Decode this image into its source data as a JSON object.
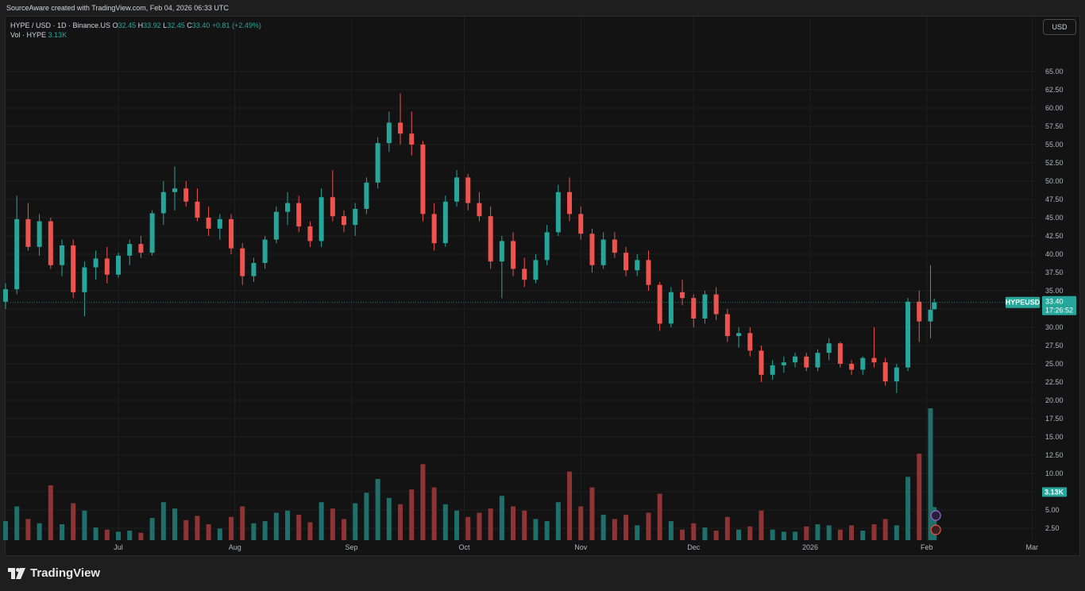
{
  "header": {
    "attribution": "SourceAware created with TradingView.com, Feb 04, 2026 06:33 UTC"
  },
  "legend": {
    "symbol": "HYPE / USD · 1D · Binance.US",
    "open_label": "O",
    "open": "32.45",
    "high_label": "H",
    "high": "33.92",
    "low_label": "L",
    "low": "32.45",
    "close_label": "C",
    "close": "33.40",
    "change": "+0.81 (+2.49%)",
    "volume_label": "Vol · HYPE",
    "volume": "3.13K"
  },
  "currency_button": "USD",
  "price_tag": {
    "symbol": "HYPEUSD",
    "price": "33.40",
    "countdown": "17:26:52"
  },
  "volume_tag": "3.13K",
  "brand": {
    "name": "TradingView"
  },
  "colors": {
    "up": "#26a69a",
    "down": "#ef5350",
    "up_volume": "#1f6f6a",
    "down_volume": "#8f3434",
    "background": "#131313",
    "grid": "#1f1f1f"
  },
  "chart_data": {
    "type": "candlestick",
    "symbol": "HYPEUSD",
    "interval": "1D",
    "y_axis": {
      "min": 2.5,
      "max": 67.5,
      "ticks": [
        2.5,
        5,
        7.5,
        10,
        12.5,
        15,
        17.5,
        20,
        22.5,
        25,
        27.5,
        30,
        32.5,
        35,
        37.5,
        40,
        42.5,
        45,
        47.5,
        50,
        52.5,
        55,
        57.5,
        60,
        62.5,
        65
      ]
    },
    "x_axis": {
      "labels": [
        {
          "text": "Jul",
          "date": "2025-07-01"
        },
        {
          "text": "Aug",
          "date": "2025-08-01"
        },
        {
          "text": "Sep",
          "date": "2025-09-01"
        },
        {
          "text": "Oct",
          "date": "2025-10-01"
        },
        {
          "text": "Nov",
          "date": "2025-11-01"
        },
        {
          "text": "Dec",
          "date": "2025-12-01"
        },
        {
          "text": "2026",
          "date": "2026-01-01"
        },
        {
          "text": "Feb",
          "date": "2026-02-01"
        },
        {
          "text": "Mar",
          "date": "2026-03-01"
        }
      ],
      "start": "2025-06-01",
      "end": "2026-03-02"
    },
    "last_price": 33.4,
    "volume_unit": "K",
    "candles": [
      [
        "2025-06-01",
        33.5,
        36.0,
        32.5,
        35.2,
        1.8
      ],
      [
        "2025-06-04",
        35.2,
        48.0,
        34.5,
        44.8,
        3.2
      ],
      [
        "2025-06-07",
        44.8,
        47.0,
        40.5,
        41.0,
        2.0
      ],
      [
        "2025-06-10",
        41.0,
        45.5,
        39.8,
        44.5,
        1.6
      ],
      [
        "2025-06-13",
        44.5,
        45.0,
        38.0,
        38.5,
        5.2
      ],
      [
        "2025-06-16",
        38.5,
        42.0,
        37.0,
        41.2,
        1.5
      ],
      [
        "2025-06-19",
        41.2,
        42.0,
        34.0,
        34.8,
        3.5
      ],
      [
        "2025-06-22",
        34.8,
        39.0,
        31.5,
        38.2,
        2.8
      ],
      [
        "2025-06-25",
        38.2,
        40.5,
        36.5,
        39.4,
        1.2
      ],
      [
        "2025-06-28",
        39.4,
        41.0,
        36.0,
        37.2,
        1.0
      ],
      [
        "2025-07-01",
        37.2,
        40.2,
        36.8,
        39.8,
        0.8
      ],
      [
        "2025-07-04",
        39.8,
        42.0,
        38.5,
        41.4,
        0.9
      ],
      [
        "2025-07-07",
        41.4,
        42.5,
        39.5,
        40.2,
        0.7
      ],
      [
        "2025-07-10",
        40.2,
        46.0,
        39.8,
        45.6,
        2.1
      ],
      [
        "2025-07-13",
        45.6,
        50.0,
        44.0,
        48.5,
        3.6
      ],
      [
        "2025-07-16",
        48.5,
        52.0,
        46.0,
        49.0,
        3.0
      ],
      [
        "2025-07-19",
        49.0,
        50.0,
        46.5,
        47.2,
        1.9
      ],
      [
        "2025-07-22",
        47.2,
        49.0,
        44.5,
        45.0,
        2.3
      ],
      [
        "2025-07-25",
        45.0,
        46.5,
        42.5,
        43.5,
        1.5
      ],
      [
        "2025-07-28",
        43.5,
        45.5,
        42.0,
        44.8,
        1.1
      ],
      [
        "2025-07-31",
        44.8,
        45.5,
        40.0,
        40.8,
        2.2
      ],
      [
        "2025-08-03",
        40.8,
        41.5,
        35.8,
        37.0,
        3.2
      ],
      [
        "2025-08-06",
        37.0,
        39.5,
        36.2,
        38.8,
        1.6
      ],
      [
        "2025-08-09",
        38.8,
        42.5,
        38.0,
        42.0,
        1.8
      ],
      [
        "2025-08-12",
        42.0,
        46.5,
        41.5,
        45.8,
        2.6
      ],
      [
        "2025-08-15",
        45.8,
        48.5,
        44.0,
        47.0,
        2.8
      ],
      [
        "2025-08-18",
        47.0,
        48.0,
        43.0,
        43.8,
        2.4
      ],
      [
        "2025-08-21",
        43.8,
        44.5,
        41.0,
        41.8,
        1.7
      ],
      [
        "2025-08-24",
        41.8,
        49.0,
        41.0,
        47.8,
        3.6
      ],
      [
        "2025-08-27",
        47.8,
        51.5,
        44.5,
        45.2,
        3.0
      ],
      [
        "2025-08-30",
        45.2,
        46.0,
        43.0,
        44.0,
        2.0
      ],
      [
        "2025-09-02",
        44.0,
        47.0,
        42.5,
        46.2,
        3.5
      ],
      [
        "2025-09-05",
        46.2,
        50.5,
        45.5,
        49.8,
        4.5
      ],
      [
        "2025-09-08",
        49.8,
        56.0,
        49.0,
        55.2,
        5.8
      ],
      [
        "2025-09-11",
        55.2,
        59.5,
        54.0,
        58.0,
        4.0
      ],
      [
        "2025-09-14",
        58.0,
        62.0,
        55.0,
        56.5,
        3.4
      ],
      [
        "2025-09-17",
        56.5,
        59.5,
        53.5,
        55.0,
        4.8
      ],
      [
        "2025-09-20",
        55.0,
        55.5,
        44.5,
        45.5,
        7.2
      ],
      [
        "2025-09-23",
        45.5,
        47.0,
        40.5,
        41.5,
        5.0
      ],
      [
        "2025-09-26",
        41.5,
        48.0,
        41.0,
        47.2,
        3.4
      ],
      [
        "2025-09-29",
        47.2,
        51.5,
        46.5,
        50.5,
        2.8
      ],
      [
        "2025-10-02",
        50.5,
        51.0,
        46.0,
        47.0,
        2.2
      ],
      [
        "2025-10-05",
        47.0,
        48.5,
        44.5,
        45.2,
        2.6
      ],
      [
        "2025-10-08",
        45.2,
        46.5,
        38.0,
        39.0,
        3.0
      ],
      [
        "2025-10-11",
        39.0,
        42.5,
        34.0,
        41.8,
        4.2
      ],
      [
        "2025-10-14",
        41.8,
        43.0,
        37.0,
        38.0,
        3.2
      ],
      [
        "2025-10-17",
        38.0,
        39.5,
        35.5,
        36.5,
        2.8
      ],
      [
        "2025-10-20",
        36.5,
        40.0,
        36.0,
        39.2,
        2.0
      ],
      [
        "2025-10-23",
        39.2,
        44.0,
        38.5,
        43.0,
        1.8
      ],
      [
        "2025-10-26",
        43.0,
        49.5,
        42.5,
        48.5,
        3.6
      ],
      [
        "2025-10-29",
        48.5,
        50.5,
        44.5,
        45.5,
        6.5
      ],
      [
        "2025-11-01",
        45.5,
        46.5,
        42.0,
        42.8,
        3.2
      ],
      [
        "2025-11-04",
        42.8,
        43.5,
        37.5,
        38.5,
        5.0
      ],
      [
        "2025-11-07",
        38.5,
        43.0,
        38.0,
        42.0,
        2.4
      ],
      [
        "2025-11-10",
        42.0,
        43.0,
        39.5,
        40.2,
        2.0
      ],
      [
        "2025-11-13",
        40.2,
        41.0,
        37.0,
        37.8,
        2.4
      ],
      [
        "2025-11-16",
        37.8,
        40.0,
        37.0,
        39.2,
        1.4
      ],
      [
        "2025-11-19",
        39.2,
        40.5,
        35.0,
        35.8,
        2.6
      ],
      [
        "2025-11-22",
        35.8,
        36.2,
        29.5,
        30.5,
        4.4
      ],
      [
        "2025-11-25",
        30.5,
        35.5,
        30.0,
        34.8,
        1.8
      ],
      [
        "2025-11-28",
        34.8,
        36.5,
        33.0,
        34.0,
        1.0
      ],
      [
        "2025-12-01",
        34.0,
        34.5,
        30.0,
        31.2,
        1.6
      ],
      [
        "2025-12-04",
        31.2,
        35.0,
        30.5,
        34.5,
        1.2
      ],
      [
        "2025-12-07",
        34.5,
        35.5,
        31.0,
        31.8,
        0.9
      ],
      [
        "2025-12-10",
        31.8,
        32.5,
        28.0,
        28.8,
        2.2
      ],
      [
        "2025-12-13",
        28.8,
        30.0,
        27.2,
        29.2,
        1.0
      ],
      [
        "2025-12-16",
        29.2,
        30.0,
        26.0,
        26.8,
        1.3
      ],
      [
        "2025-12-19",
        26.8,
        27.5,
        22.5,
        23.5,
        2.8
      ],
      [
        "2025-12-22",
        23.5,
        25.5,
        22.8,
        24.8,
        1.0
      ],
      [
        "2025-12-25",
        24.8,
        26.0,
        23.8,
        25.2,
        0.8
      ],
      [
        "2025-12-28",
        25.2,
        26.5,
        24.5,
        26.0,
        0.8
      ],
      [
        "2025-12-31",
        26.0,
        26.5,
        24.0,
        24.5,
        1.3
      ],
      [
        "2026-01-03",
        24.5,
        27.0,
        24.0,
        26.5,
        1.5
      ],
      [
        "2026-01-06",
        26.5,
        28.5,
        25.5,
        27.8,
        1.4
      ],
      [
        "2026-01-09",
        27.8,
        28.0,
        24.5,
        25.0,
        1.0
      ],
      [
        "2026-01-12",
        25.0,
        25.5,
        23.5,
        24.2,
        1.4
      ],
      [
        "2026-01-15",
        24.2,
        26.0,
        23.5,
        25.8,
        0.9
      ],
      [
        "2026-01-18",
        25.8,
        30.0,
        24.5,
        25.2,
        1.5
      ],
      [
        "2026-01-21",
        25.2,
        25.8,
        22.0,
        22.6,
        2.0
      ],
      [
        "2026-01-24",
        22.6,
        25.0,
        21.0,
        24.5,
        1.4
      ],
      [
        "2026-01-27",
        24.5,
        34.0,
        24.0,
        33.5,
        6.0
      ],
      [
        "2026-01-30",
        33.5,
        35.0,
        28.0,
        30.8,
        8.2
      ],
      [
        "2026-02-02",
        30.8,
        38.5,
        28.5,
        32.4,
        12.5
      ],
      [
        "2026-02-03",
        32.45,
        33.92,
        32.45,
        33.4,
        3.13
      ]
    ]
  }
}
